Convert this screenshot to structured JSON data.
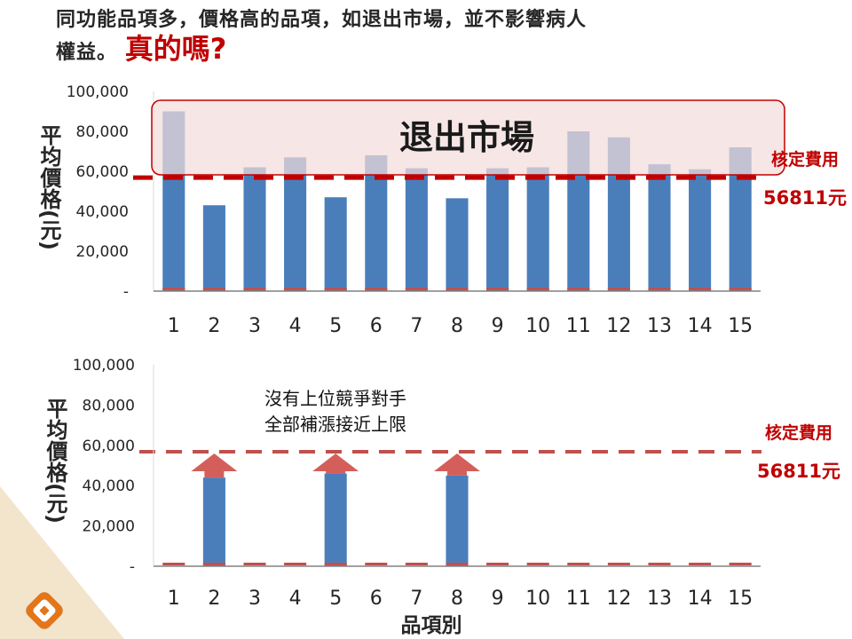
{
  "heading": {
    "line1": "同功能品項多，價格高的品項，如退出市場，並不影響病人",
    "line2": "權益。",
    "emphasis": "真的嗎?"
  },
  "chart_data": [
    {
      "type": "bar",
      "title": "",
      "ylabel": "平均價格(元)",
      "xlabel": "",
      "categories": [
        "1",
        "2",
        "3",
        "4",
        "5",
        "6",
        "7",
        "8",
        "9",
        "10",
        "11",
        "12",
        "13",
        "14",
        "15"
      ],
      "values": [
        90000,
        43000,
        62000,
        67000,
        47000,
        68000,
        61500,
        46500,
        61500,
        62000,
        80000,
        77000,
        63500,
        61000,
        72000
      ],
      "ylim": [
        0,
        100000
      ],
      "yticks": [
        "-",
        "20,000",
        "40,000",
        "60,000",
        "80,000",
        "100,000"
      ],
      "reference_line": {
        "value": 56811,
        "label": "核定費用",
        "value_label": "56811元",
        "color": "#c00000"
      },
      "highlight_box": {
        "label": "退出市場"
      },
      "grid": false
    },
    {
      "type": "bar",
      "title": "",
      "ylabel": "平均價格(元)",
      "xlabel": "品項別",
      "categories": [
        "1",
        "2",
        "3",
        "4",
        "5",
        "6",
        "7",
        "8",
        "9",
        "10",
        "11",
        "12",
        "13",
        "14",
        "15"
      ],
      "values": [
        0,
        44000,
        0,
        0,
        46000,
        0,
        0,
        45000,
        0,
        0,
        0,
        0,
        0,
        0,
        0
      ],
      "ylim": [
        0,
        100000
      ],
      "yticks": [
        "-",
        "20,000",
        "40,000",
        "60,000",
        "80,000",
        "100,000"
      ],
      "reference_line": {
        "value": 56811,
        "label": "核定費用",
        "value_label": "56811元",
        "color": "#c0504d"
      },
      "annotation": {
        "line1": "沒有上位競爭對手",
        "line2": "全部補漲接近上限"
      },
      "arrows_on": [
        "2",
        "5",
        "8"
      ],
      "grid": false
    }
  ],
  "colors": {
    "bar": "#4a7ebb",
    "bar_base": "#c0504d",
    "box_fill": "#f2dcdb",
    "box_stroke": "#c00000",
    "arrow": "#d45f5a",
    "axis": "#808080",
    "text": "#262626",
    "accent": "#c00000"
  },
  "logo": {
    "icon": "brand-logo-icon"
  }
}
